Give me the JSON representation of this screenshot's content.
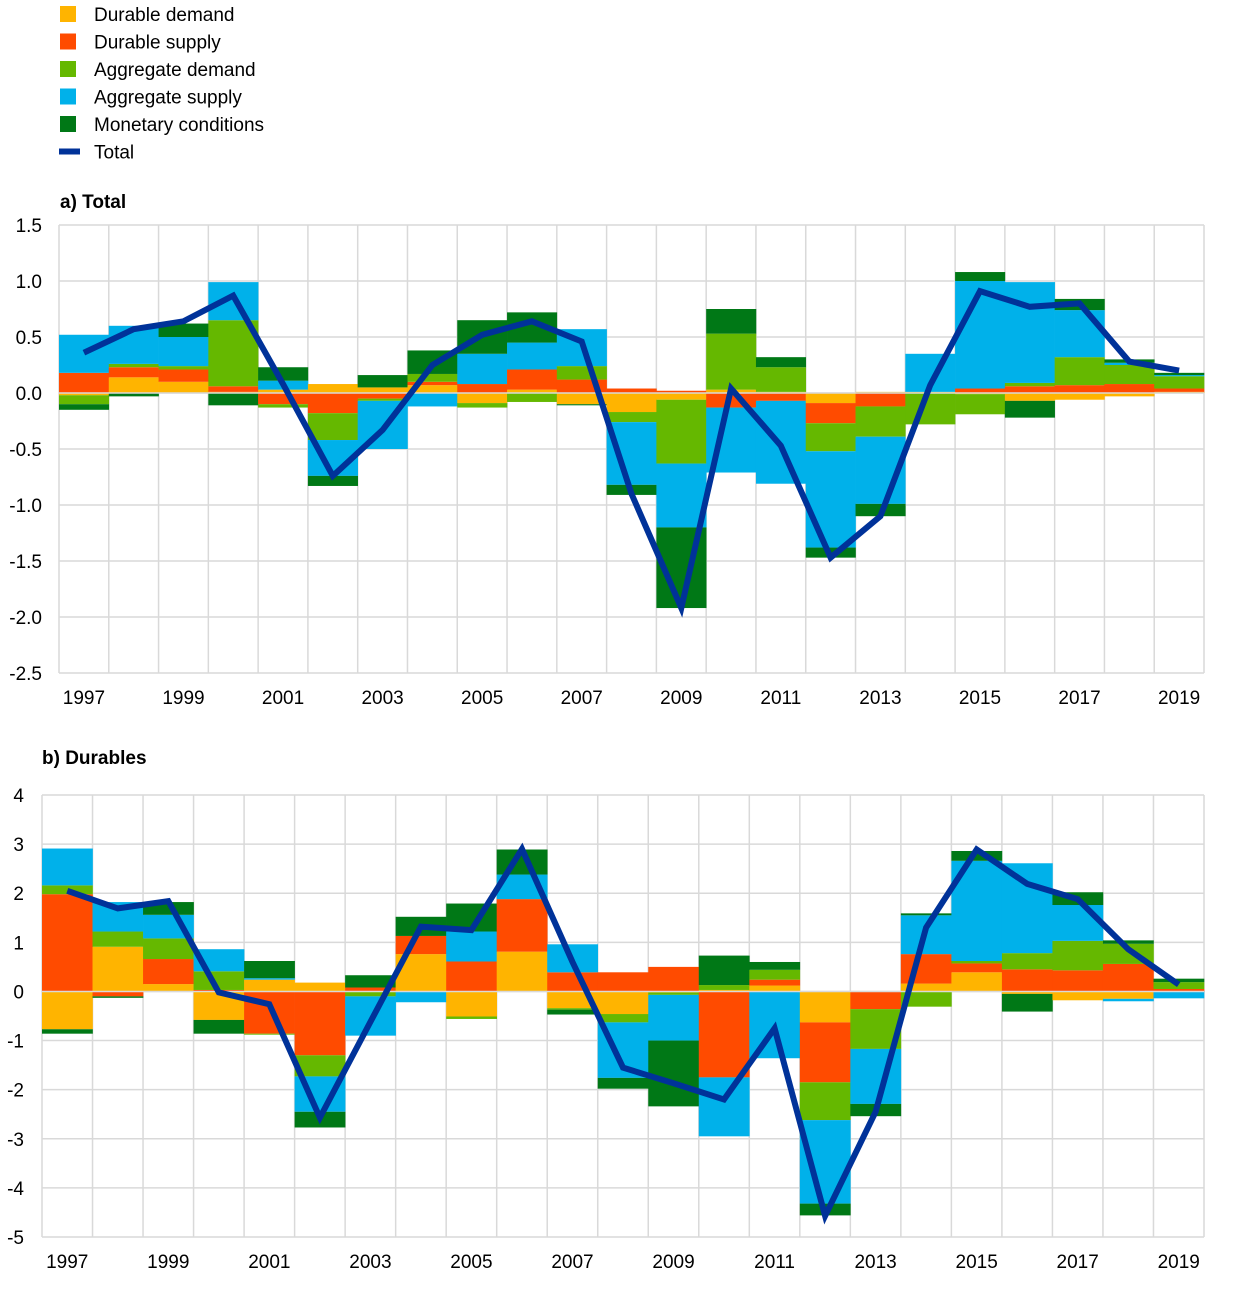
{
  "legend": [
    {
      "label": "Durable demand",
      "color": "#FFB400",
      "kind": "box"
    },
    {
      "label": "Durable supply",
      "color": "#FF4B00",
      "kind": "box"
    },
    {
      "label": "Aggregate demand",
      "color": "#65B800",
      "kind": "box"
    },
    {
      "label": "Aggregate supply",
      "color": "#00B1EA",
      "kind": "box"
    },
    {
      "label": "Monetary conditions",
      "color": "#007816",
      "kind": "box"
    },
    {
      "label": "Total",
      "color": "#003299",
      "kind": "line"
    }
  ],
  "chart_data": [
    {
      "type": "bar",
      "stacked": true,
      "title": "a) Total",
      "ylim": [
        -2.5,
        1.5
      ],
      "yticks": [
        "1.5",
        "1.0",
        "0.5",
        "0.0",
        "-0.5",
        "-1.0",
        "-1.5",
        "-2.0",
        "-2.5"
      ],
      "ytick_values": [
        1.5,
        1.0,
        0.5,
        0.0,
        -0.5,
        -1.0,
        -1.5,
        -2.0,
        -2.5
      ],
      "grid": true,
      "legend": "top-left",
      "x": [
        "1997",
        "1998",
        "1999",
        "2000",
        "2001",
        "2002",
        "2003",
        "2004",
        "2005",
        "2006",
        "2007",
        "2008",
        "2009",
        "2010",
        "2011",
        "2012",
        "2013",
        "2014",
        "2015",
        "2016",
        "2017",
        "2018",
        "2019"
      ],
      "xtick_labels": [
        "1997",
        "1999",
        "2001",
        "2003",
        "2005",
        "2007",
        "2009",
        "2011",
        "2013",
        "2015",
        "2017",
        "2019"
      ],
      "series": [
        {
          "name": "Durable demand",
          "values": [
            -0.02,
            0.14,
            0.1,
            0.01,
            0.03,
            0.08,
            0.05,
            0.07,
            -0.09,
            0.03,
            -0.1,
            -0.17,
            -0.06,
            0.03,
            0.01,
            -0.09,
            0.01,
            0.01,
            -0.01,
            -0.07,
            -0.06,
            -0.03,
            0.01
          ]
        },
        {
          "name": "Durable supply",
          "values": [
            0.18,
            0.09,
            0.11,
            0.05,
            -0.1,
            -0.18,
            -0.05,
            0.03,
            0.08,
            0.18,
            0.12,
            0.04,
            0.02,
            -0.13,
            -0.07,
            -0.18,
            -0.12,
            0.0,
            0.04,
            0.06,
            0.07,
            0.08,
            0.03
          ]
        },
        {
          "name": "Aggregate demand",
          "values": [
            -0.08,
            0.03,
            0.03,
            0.59,
            -0.03,
            -0.24,
            -0.02,
            0.07,
            -0.04,
            -0.08,
            0.12,
            -0.09,
            -0.57,
            0.5,
            0.22,
            -0.25,
            -0.27,
            -0.28,
            -0.18,
            0.03,
            0.25,
            0.17,
            0.11
          ]
        },
        {
          "name": "Aggregate supply",
          "values": [
            0.34,
            0.34,
            0.26,
            0.34,
            0.08,
            -0.32,
            -0.43,
            -0.12,
            0.27,
            0.24,
            0.33,
            -0.56,
            -0.57,
            -0.58,
            -0.74,
            -0.86,
            -0.6,
            0.34,
            0.96,
            0.9,
            0.42,
            0.02,
            0.01
          ]
        },
        {
          "name": "Monetary conditions",
          "values": [
            -0.05,
            -0.03,
            0.12,
            -0.11,
            0.12,
            -0.09,
            0.11,
            0.21,
            0.3,
            0.27,
            -0.01,
            -0.09,
            -0.72,
            0.22,
            0.09,
            -0.09,
            -0.11,
            0.0,
            0.08,
            -0.15,
            0.1,
            0.03,
            0.02
          ]
        },
        {
          "name": "Total",
          "type": "line",
          "values": [
            0.36,
            0.57,
            0.64,
            0.87,
            0.08,
            -0.74,
            -0.33,
            0.25,
            0.52,
            0.64,
            0.46,
            -0.9,
            -1.92,
            0.04,
            -0.47,
            -1.47,
            -1.1,
            0.07,
            0.91,
            0.77,
            0.8,
            0.28,
            0.2
          ]
        }
      ]
    },
    {
      "type": "bar",
      "stacked": true,
      "title": "b) Durables",
      "ylim": [
        -5,
        4
      ],
      "yticks": [
        "4",
        "3",
        "2",
        "1",
        "0",
        "-1",
        "-2",
        "-3",
        "-4",
        "-5"
      ],
      "ytick_values": [
        4,
        3,
        2,
        1,
        0,
        -1,
        -2,
        -3,
        -4,
        -5
      ],
      "grid": true,
      "x": [
        "1997",
        "1998",
        "1999",
        "2000",
        "2001",
        "2002",
        "2003",
        "2004",
        "2005",
        "2006",
        "2007",
        "2008",
        "2009",
        "2010",
        "2011",
        "2012",
        "2013",
        "2014",
        "2015",
        "2016",
        "2017",
        "2018",
        "2019"
      ],
      "xtick_labels": [
        "1997",
        "1999",
        "2001",
        "2003",
        "2005",
        "2007",
        "2009",
        "2011",
        "2013",
        "2015",
        "2017",
        "2019"
      ],
      "series": [
        {
          "name": "Durable demand",
          "values": [
            -0.77,
            0.91,
            0.15,
            -0.58,
            0.24,
            0.18,
            0.0,
            0.76,
            -0.51,
            0.81,
            -0.34,
            -0.46,
            -0.02,
            0.03,
            0.12,
            -0.63,
            0.0,
            0.16,
            0.39,
            -0.05,
            -0.18,
            -0.15,
            0.0
          ]
        },
        {
          "name": "Durable supply",
          "values": [
            1.98,
            -0.1,
            0.51,
            0.03,
            -0.86,
            -1.3,
            0.08,
            0.37,
            0.61,
            1.07,
            0.39,
            0.39,
            0.5,
            -1.75,
            0.12,
            -1.22,
            -0.36,
            0.6,
            0.18,
            0.45,
            0.43,
            0.56,
            0.05
          ]
        },
        {
          "name": "Aggregate demand",
          "values": [
            0.18,
            0.31,
            0.42,
            0.38,
            -0.02,
            -0.43,
            -0.1,
            0.0,
            -0.05,
            0.0,
            -0.03,
            -0.17,
            -0.05,
            0.1,
            0.2,
            -0.77,
            -0.81,
            -0.31,
            0.05,
            0.33,
            0.6,
            0.41,
            0.14
          ]
        },
        {
          "name": "Aggregate supply",
          "values": [
            0.75,
            0.6,
            0.48,
            0.45,
            0.03,
            -0.72,
            -0.8,
            -0.22,
            0.61,
            0.5,
            0.57,
            -1.13,
            -0.93,
            -1.2,
            -1.36,
            -1.7,
            -1.12,
            0.79,
            2.04,
            1.83,
            0.73,
            -0.05,
            -0.14
          ]
        },
        {
          "name": "Monetary conditions",
          "values": [
            -0.09,
            -0.03,
            0.26,
            -0.28,
            0.35,
            -0.32,
            0.25,
            0.39,
            0.57,
            0.51,
            -0.1,
            -0.22,
            -1.34,
            0.6,
            0.16,
            -0.24,
            -0.25,
            0.04,
            0.2,
            -0.36,
            0.26,
            0.07,
            0.07
          ]
        },
        {
          "name": "Total",
          "type": "line",
          "values": [
            2.05,
            1.69,
            1.84,
            -0.02,
            -0.26,
            -2.57,
            -0.62,
            1.32,
            1.25,
            2.9,
            0.6,
            -1.55,
            -1.87,
            -2.2,
            -0.75,
            -4.57,
            -2.45,
            1.3,
            2.89,
            2.19,
            1.88,
            0.86,
            0.14
          ]
        }
      ]
    }
  ]
}
